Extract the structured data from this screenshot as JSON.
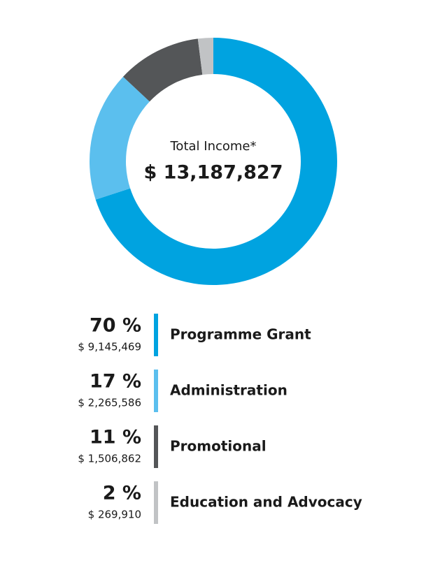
{
  "chart_data": {
    "type": "donut",
    "center_title": "Total Income*",
    "total": 13187827,
    "total_label": "$ 13,187,827",
    "categories": [
      "Programme Grant",
      "Administration",
      "Promotional",
      "Education and Advocacy"
    ],
    "values": [
      70,
      17,
      11,
      2
    ],
    "value_labels": [
      "70 %",
      "17 %",
      "11 %",
      "2 %"
    ],
    "amounts": [
      9145469,
      2265586,
      1506862,
      269910
    ],
    "amount_labels": [
      "$ 9,145,469",
      "$ 2,265,586",
      "$ 1,506,862",
      "$ 269,910"
    ],
    "colors": [
      "#00a3e0",
      "#5bbfee",
      "#545658",
      "#c1c3c5"
    ]
  }
}
